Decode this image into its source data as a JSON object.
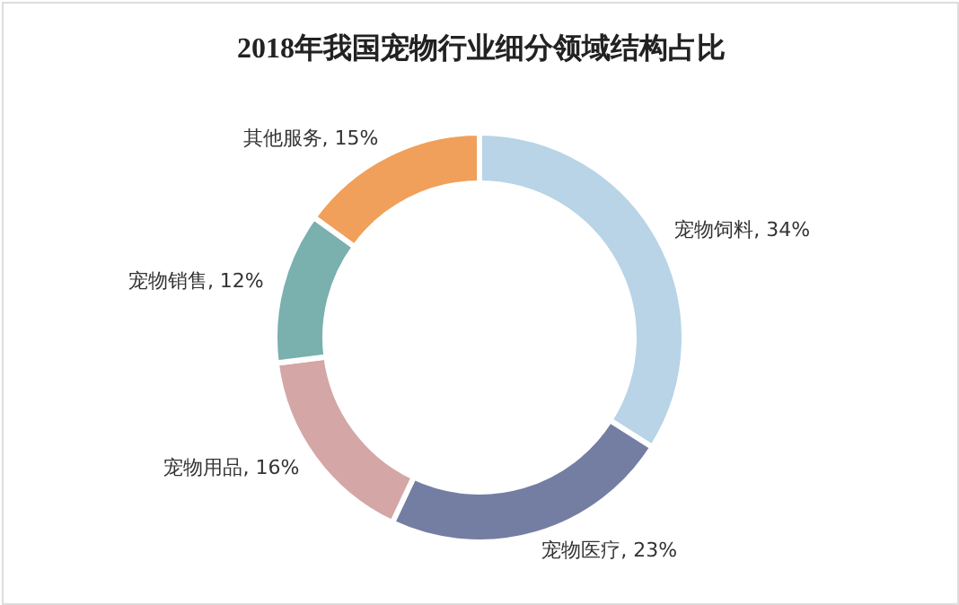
{
  "chart_data": {
    "type": "donut",
    "title": "2018年我国宠物行业细分领域结构占比",
    "categories": [
      "宠物饲料",
      "宠物医疗",
      "宠物用品",
      "宠物销售",
      "其他服务"
    ],
    "values": [
      34,
      23,
      16,
      12,
      15
    ],
    "value_labels": [
      "34%",
      "23%",
      "16%",
      "12%",
      "15%"
    ],
    "colors": [
      "#b8d4e6",
      "#747ea3",
      "#d4a6a6",
      "#7ab0ae",
      "#f0a05a"
    ]
  }
}
